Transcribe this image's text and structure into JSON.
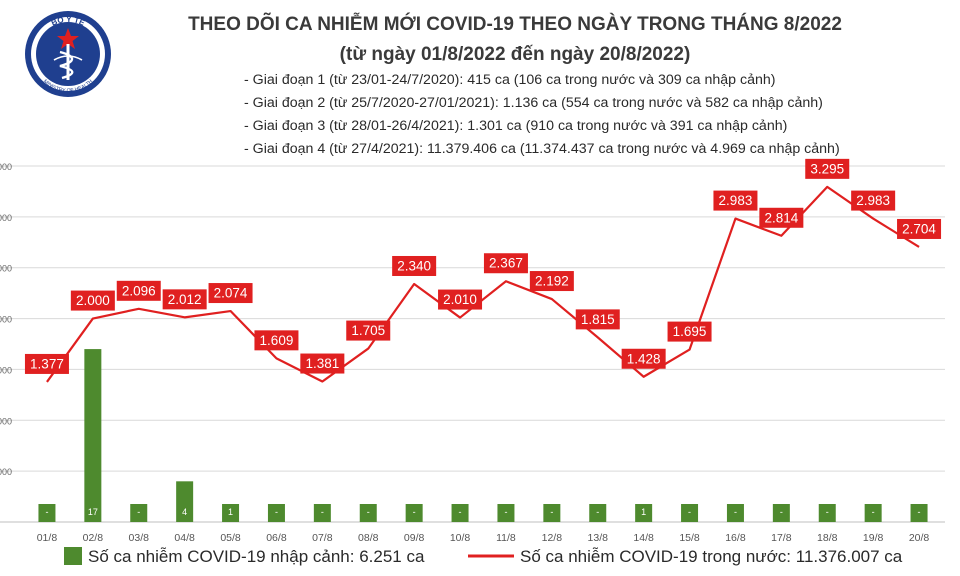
{
  "header": {
    "title": "THEO DÕI CA NHIỄM MỚI COVID-19 THEO NGÀY TRONG THÁNG 8/2022",
    "subtitle": "(từ ngày 01/8/2022 đến ngày 20/8/2022)",
    "logo_text": "BỘ Y TẾ",
    "logo_subtext": "MINISTRY OF HEALTH"
  },
  "notes": [
    "- Giai đoạn 1 (từ 23/01-24/7/2020): 415 ca (106 ca trong nước và 309 ca nhập cảnh)",
    "- Giai đoạn 2 (từ 25/7/2020-27/01/2021): 1.136 ca (554 ca trong nước và 582 ca nhập cảnh)",
    "- Giai đoạn 3 (từ 28/01-26/4/2021): 1.301 ca (910 ca trong nước và 391 ca nhập cảnh)",
    "- Giai đoạn 4 (từ 27/4/2021): 11.379.406 ca (11.374.437 ca trong nước và 4.969 ca nhập cảnh)"
  ],
  "chart_data": {
    "type": "bar+line",
    "categories": [
      "01/8",
      "02/8",
      "03/8",
      "04/8",
      "05/8",
      "06/8",
      "07/8",
      "08/8",
      "09/8",
      "10/8",
      "11/8",
      "12/8",
      "13/8",
      "14/8",
      "15/8",
      "16/8",
      "17/8",
      "18/8",
      "19/8",
      "20/8"
    ],
    "series": [
      {
        "name": "Số ca nhiễm COVID-19 nhập cảnh: 6.251 ca",
        "kind": "bar",
        "axis": "left",
        "color": "#4e8a2e",
        "values": [
          0,
          17,
          0,
          4,
          1,
          0,
          0,
          0,
          0,
          0,
          0,
          0,
          0,
          1,
          0,
          0,
          0,
          0,
          0,
          0
        ],
        "labels": [
          "-",
          "17",
          "-",
          "4",
          "1",
          "-",
          "-",
          "-",
          "-",
          "-",
          "-",
          "-",
          "-",
          "1",
          "-",
          "-",
          "-",
          "-",
          "-",
          "-"
        ]
      },
      {
        "name": "Số ca nhiễm COVID-19 trong nước: 11.376.007 ca",
        "kind": "line",
        "axis": "right",
        "color": "#e02020",
        "values": [
          1377,
          2000,
          2096,
          2012,
          2074,
          1609,
          1381,
          1705,
          2340,
          2010,
          2367,
          2192,
          1815,
          1428,
          1695,
          2983,
          2814,
          3295,
          2983,
          2704
        ],
        "labels": [
          "1.377",
          "2.000",
          "2.096",
          "2.012",
          "2.074",
          "1.609",
          "1.381",
          "1.705",
          "2.340",
          "2.010",
          "2.367",
          "2.192",
          "1.815",
          "1.428",
          "1.695",
          "2.983",
          "2.814",
          "3.295",
          "2.983",
          "2.704"
        ]
      }
    ],
    "left_axis": {
      "min": 0,
      "max": 35,
      "tick_labels": [
        "",
        "000",
        "000",
        "000",
        "000",
        "000",
        "000",
        "000"
      ]
    },
    "right_axis": {
      "min": 0,
      "max": 3500,
      "tick_labels": [
        "",
        "",
        "",
        "",
        "",
        "",
        "",
        ""
      ]
    },
    "grid": true,
    "legend_position": "bottom"
  },
  "colors": {
    "bar": "#4e8a2e",
    "line": "#e02020",
    "label_box": "#e02020",
    "title": "#3a3a3a",
    "logo_blue": "#1f3f8f"
  }
}
